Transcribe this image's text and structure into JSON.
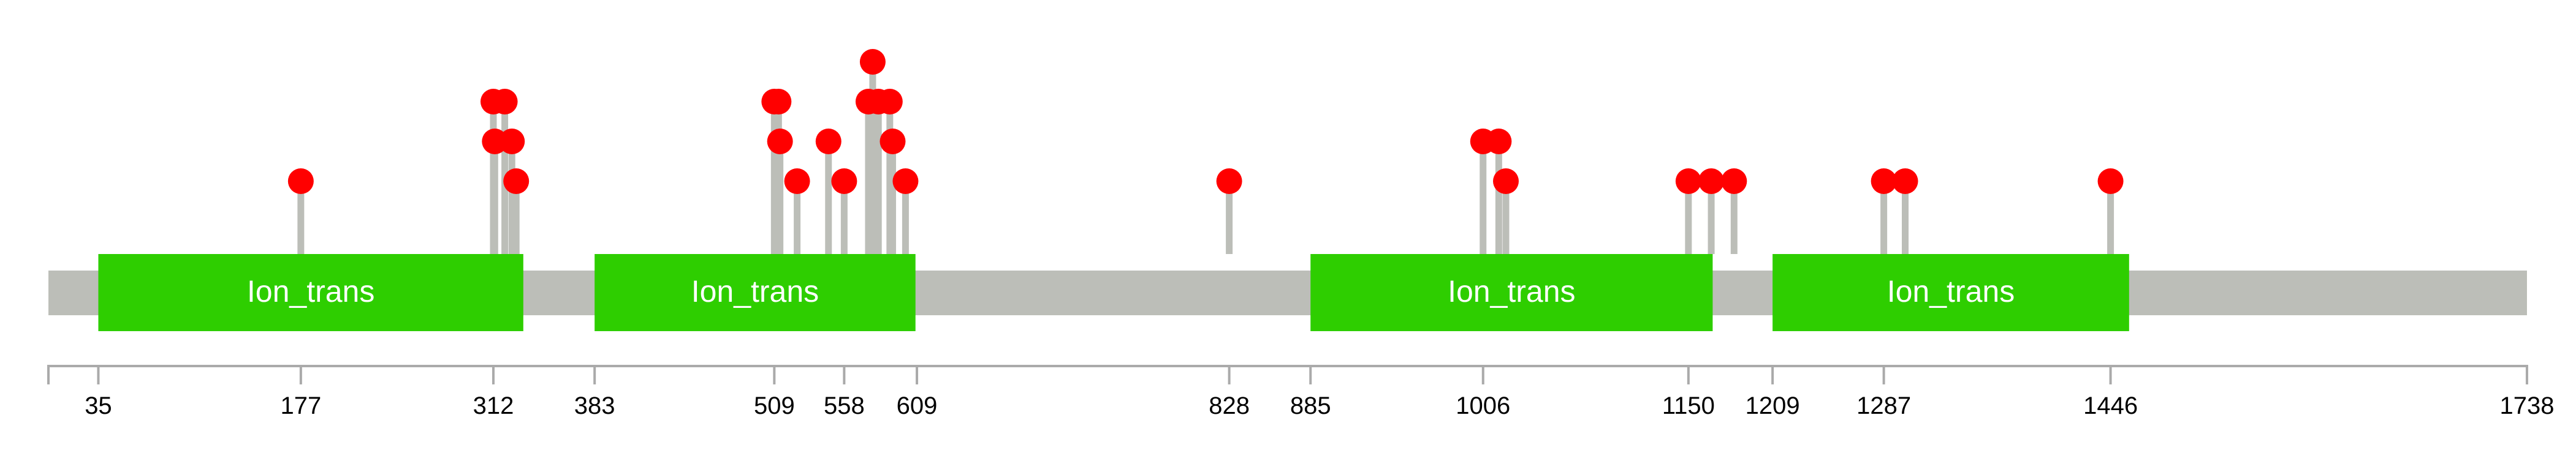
{
  "protein": {
    "length": 1738,
    "backbone_color": "#BCBEB8",
    "domain_color": "#2ECE00",
    "mutation_color": "#FF0000",
    "axis_color": "#AAAAAA"
  },
  "domains": [
    {
      "label": "Ion_trans",
      "start": 35,
      "end": 333
    },
    {
      "label": "Ion_trans",
      "start": 383,
      "end": 608
    },
    {
      "label": "Ion_trans",
      "start": 885,
      "end": 1167
    },
    {
      "label": "Ion_trans",
      "start": 1209,
      "end": 1459
    }
  ],
  "mutations": [
    {
      "position": 177,
      "count": 1
    },
    {
      "position": 312,
      "count": 3
    },
    {
      "position": 313,
      "count": 2
    },
    {
      "position": 320,
      "count": 3
    },
    {
      "position": 325,
      "count": 2
    },
    {
      "position": 328,
      "count": 1
    },
    {
      "position": 509,
      "count": 3
    },
    {
      "position": 512,
      "count": 3
    },
    {
      "position": 513,
      "count": 2
    },
    {
      "position": 525,
      "count": 1
    },
    {
      "position": 547,
      "count": 2
    },
    {
      "position": 558,
      "count": 1
    },
    {
      "position": 575,
      "count": 3
    },
    {
      "position": 578,
      "count": 4
    },
    {
      "position": 582,
      "count": 3
    },
    {
      "position": 590,
      "count": 3
    },
    {
      "position": 592,
      "count": 2
    },
    {
      "position": 601,
      "count": 1
    },
    {
      "position": 828,
      "count": 1
    },
    {
      "position": 1006,
      "count": 2
    },
    {
      "position": 1017,
      "count": 2
    },
    {
      "position": 1022,
      "count": 1
    },
    {
      "position": 1150,
      "count": 1
    },
    {
      "position": 1166,
      "count": 1
    },
    {
      "position": 1182,
      "count": 1
    },
    {
      "position": 1287,
      "count": 1
    },
    {
      "position": 1302,
      "count": 1
    },
    {
      "position": 1446,
      "count": 1
    }
  ],
  "axis": {
    "min": 0,
    "max": 1738,
    "ticks": [
      "35",
      "177",
      "312",
      "383",
      "509",
      "558",
      "609",
      "828",
      "885",
      "1006",
      "1150",
      "1209",
      "1287",
      "1446",
      "1738"
    ]
  }
}
